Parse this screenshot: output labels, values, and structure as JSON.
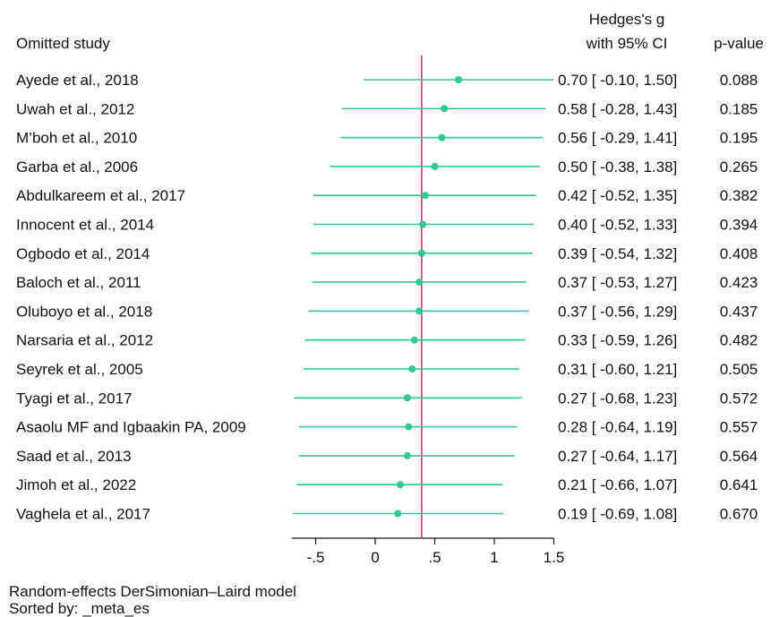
{
  "chart_data": {
    "type": "forest",
    "header": {
      "study_label": "Omitted study",
      "effect_label_line1": "Hedges's g",
      "effect_label_line2": "with 95% CI",
      "p_label": "p-value"
    },
    "rows": [
      {
        "study": "Ayede et al., 2018",
        "es": 0.7,
        "lo": -0.1,
        "hi": 1.5,
        "ci_text": "0.70 [ -0.10,  1.50]",
        "p": "0.088"
      },
      {
        "study": "Uwah et al., 2012",
        "es": 0.58,
        "lo": -0.28,
        "hi": 1.43,
        "ci_text": "0.58 [ -0.28,  1.43]",
        "p": "0.185"
      },
      {
        "study": "M’boh et al., 2010",
        "es": 0.56,
        "lo": -0.29,
        "hi": 1.41,
        "ci_text": "0.56 [ -0.29,  1.41]",
        "p": "0.195"
      },
      {
        "study": "Garba et al., 2006",
        "es": 0.5,
        "lo": -0.38,
        "hi": 1.38,
        "ci_text": "0.50 [ -0.38,  1.38]",
        "p": "0.265"
      },
      {
        "study": "Abdulkareem et al., 2017",
        "es": 0.42,
        "lo": -0.52,
        "hi": 1.35,
        "ci_text": "0.42 [ -0.52,  1.35]",
        "p": "0.382"
      },
      {
        "study": "Innocent et al., 2014",
        "es": 0.4,
        "lo": -0.52,
        "hi": 1.33,
        "ci_text": "0.40 [ -0.52,  1.33]",
        "p": "0.394"
      },
      {
        "study": "Ogbodo et al., 2014",
        "es": 0.39,
        "lo": -0.54,
        "hi": 1.32,
        "ci_text": "0.39 [ -0.54,  1.32]",
        "p": "0.408"
      },
      {
        "study": "Baloch et al., 2011",
        "es": 0.37,
        "lo": -0.53,
        "hi": 1.27,
        "ci_text": "0.37 [ -0.53,  1.27]",
        "p": "0.423"
      },
      {
        "study": "Oluboyo et al., 2018",
        "es": 0.37,
        "lo": -0.56,
        "hi": 1.29,
        "ci_text": "0.37 [ -0.56,  1.29]",
        "p": "0.437"
      },
      {
        "study": "Narsaria et al., 2012",
        "es": 0.33,
        "lo": -0.59,
        "hi": 1.26,
        "ci_text": "0.33 [ -0.59,  1.26]",
        "p": "0.482"
      },
      {
        "study": "Seyrek et al., 2005",
        "es": 0.31,
        "lo": -0.6,
        "hi": 1.21,
        "ci_text": "0.31 [ -0.60,  1.21]",
        "p": "0.505"
      },
      {
        "study": "Tyagi et al., 2017",
        "es": 0.27,
        "lo": -0.68,
        "hi": 1.23,
        "ci_text": "0.27 [ -0.68,  1.23]",
        "p": "0.572"
      },
      {
        "study": "Asaolu MF and Igbaakin PA, 2009",
        "es": 0.28,
        "lo": -0.64,
        "hi": 1.19,
        "ci_text": "0.28 [ -0.64,  1.19]",
        "p": "0.557"
      },
      {
        "study": "Saad et al., 2013",
        "es": 0.27,
        "lo": -0.64,
        "hi": 1.17,
        "ci_text": "0.27 [ -0.64,  1.17]",
        "p": "0.564"
      },
      {
        "study": "Jimoh et al., 2022",
        "es": 0.21,
        "lo": -0.66,
        "hi": 1.07,
        "ci_text": "0.21 [ -0.66,  1.07]",
        "p": "0.641"
      },
      {
        "study": "Vaghela et al., 2017",
        "es": 0.19,
        "lo": -0.69,
        "hi": 1.08,
        "ci_text": "0.19 [ -0.69,  1.08]",
        "p": "0.670"
      }
    ],
    "overall_es": 0.39,
    "xlim": [
      -0.7,
      1.5
    ],
    "xticks": [
      -0.5,
      0,
      0.5,
      1,
      1.5
    ],
    "xtick_labels": [
      "-.5",
      "0",
      ".5",
      "1",
      "1.5"
    ],
    "footnotes": [
      "Random-effects DerSimonian–Laird model",
      "Sorted by: _meta_es"
    ],
    "colors": {
      "marker": "#2ec98e",
      "ci_line": "#2ec98e",
      "overall_line": "#d6336c",
      "axis": "#111111"
    }
  }
}
